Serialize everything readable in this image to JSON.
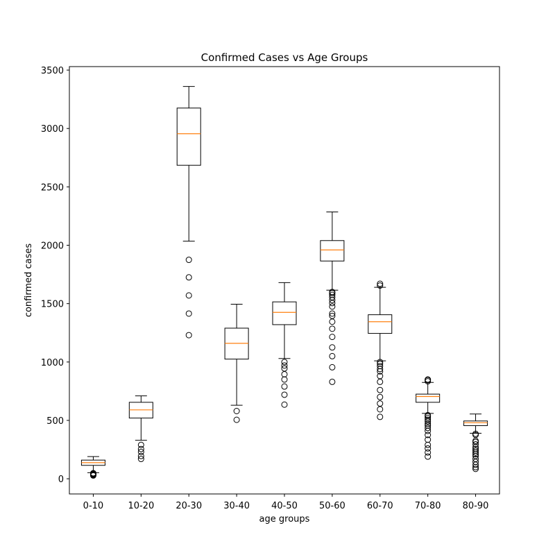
{
  "chart_data": {
    "type": "box",
    "title": "Confirmed Cases vs Age Groups",
    "xlabel": "age groups",
    "ylabel": "confirmed cases",
    "ylim": [
      -130,
      3530
    ],
    "yticks": [
      0,
      500,
      1000,
      1500,
      2000,
      2500,
      3000,
      3500
    ],
    "grid": false,
    "categories": [
      "0-10",
      "10-20",
      "20-30",
      "30-40",
      "40-50",
      "50-60",
      "60-70",
      "70-80",
      "80-90"
    ],
    "boxes": [
      {
        "category": "0-10",
        "whisker_low": 52,
        "q1": 115,
        "median": 138,
        "q3": 160,
        "whisker_high": 190,
        "outliers": [
          48,
          44,
          40,
          36,
          32,
          28
        ]
      },
      {
        "category": "10-20",
        "whisker_low": 330,
        "q1": 520,
        "median": 590,
        "q3": 655,
        "whisker_high": 710,
        "outliers": [
          290,
          255,
          230,
          195,
          170
        ]
      },
      {
        "category": "20-30",
        "whisker_low": 2035,
        "q1": 2685,
        "median": 2955,
        "q3": 3175,
        "whisker_high": 3360,
        "outliers": [
          1875,
          1725,
          1570,
          1415,
          1230
        ]
      },
      {
        "category": "30-40",
        "whisker_low": 630,
        "q1": 1025,
        "median": 1160,
        "q3": 1290,
        "whisker_high": 1495,
        "outliers": [
          580,
          505
        ]
      },
      {
        "category": "40-50",
        "whisker_low": 1030,
        "q1": 1320,
        "median": 1425,
        "q3": 1515,
        "whisker_high": 1680,
        "outliers": [
          1000,
          970,
          945,
          895,
          850,
          790,
          720,
          635
        ]
      },
      {
        "category": "50-60",
        "whisker_low": 1615,
        "q1": 1865,
        "median": 1960,
        "q3": 2040,
        "whisker_high": 2285,
        "outliers": [
          1600,
          1590,
          1575,
          1555,
          1530,
          1505,
          1475,
          1415,
          1395,
          1345,
          1285,
          1215,
          1125,
          1050,
          955,
          830
        ]
      },
      {
        "category": "60-70",
        "whisker_low": 1010,
        "q1": 1245,
        "median": 1345,
        "q3": 1405,
        "whisker_high": 1640,
        "outliers": [
          1670,
          1655,
          1000,
          985,
          965,
          940,
          920,
          880,
          830,
          760,
          700,
          645,
          595,
          530
        ]
      },
      {
        "category": "70-80",
        "whisker_low": 560,
        "q1": 655,
        "median": 705,
        "q3": 725,
        "whisker_high": 825,
        "outliers": [
          850,
          845,
          835,
          545,
          535,
          520,
          505,
          490,
          470,
          455,
          435,
          410,
          375,
          335,
          290,
          260,
          225,
          190
        ]
      },
      {
        "category": "80-90",
        "whisker_low": 390,
        "q1": 455,
        "median": 480,
        "q3": 495,
        "whisker_high": 555,
        "outliers": [
          385,
          375,
          325,
          315,
          295,
          270,
          255,
          240,
          225,
          210,
          195,
          170,
          145,
          120,
          100,
          85
        ]
      }
    ],
    "colors": {
      "box": "#000000",
      "median": "#ff7f0e",
      "outlier_edge": "#000000"
    }
  }
}
